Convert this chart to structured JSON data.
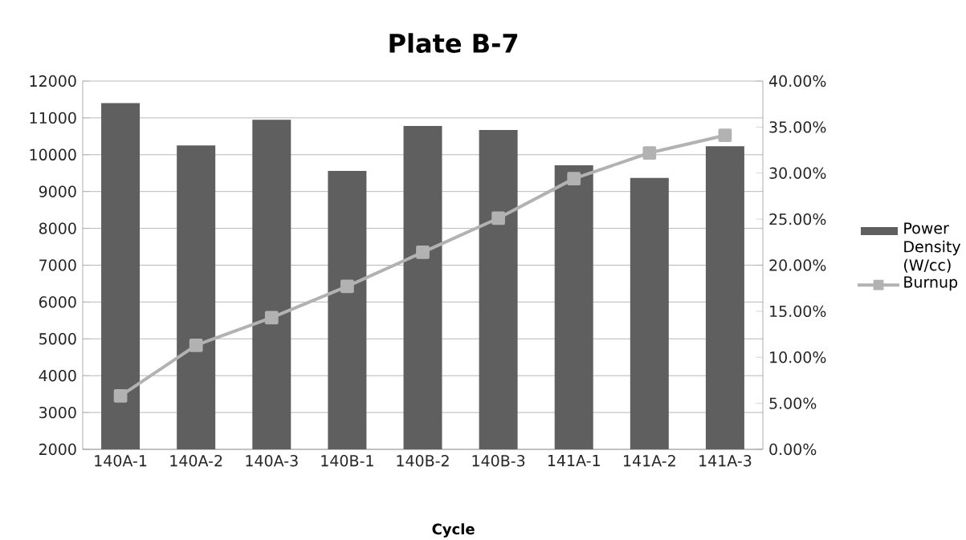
{
  "chart_data": {
    "type": "bar",
    "title": "Plate B-7",
    "xlabel": "Cycle",
    "categories": [
      "140A-1",
      "140A-2",
      "140A-3",
      "140B-1",
      "140B-2",
      "140B-3",
      "141A-1",
      "141A-2",
      "141A-3"
    ],
    "series": [
      {
        "name": "Power Density (W/cc)",
        "color": "#5f5f5f",
        "values": [
          11400,
          10250,
          10950,
          9560,
          10780,
          10670,
          9710,
          9370,
          10230
        ]
      },
      {
        "name": "Burnup",
        "type": "line",
        "axis": "y2",
        "color": "#b2b2b2",
        "values": [
          5.8,
          11.3,
          14.3,
          17.7,
          21.4,
          25.1,
          29.4,
          32.2,
          34.1
        ]
      }
    ],
    "ylim": [
      2000,
      12000
    ],
    "yticks": [
      2000,
      3000,
      4000,
      5000,
      6000,
      7000,
      8000,
      9000,
      10000,
      11000,
      12000
    ],
    "y2lim": [
      0,
      40
    ],
    "y2ticks": [
      {
        "value": 0,
        "label": "0.00%"
      },
      {
        "value": 5,
        "label": "5.00%"
      },
      {
        "value": 10,
        "label": "10.00%"
      },
      {
        "value": 15,
        "label": "15.00%"
      },
      {
        "value": 20,
        "label": "20.00%"
      },
      {
        "value": 25,
        "label": "25.00%"
      },
      {
        "value": 30,
        "label": "30.00%"
      },
      {
        "value": 35,
        "label": "35.00%"
      },
      {
        "value": 40,
        "label": "40.00%"
      }
    ],
    "grid": "y",
    "legend": "right",
    "marker": "square",
    "line_style": "solid"
  }
}
